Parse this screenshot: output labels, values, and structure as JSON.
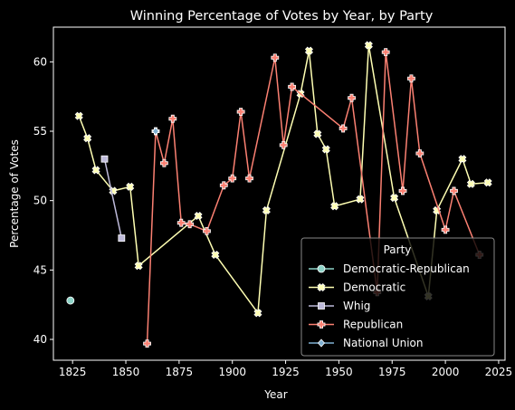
{
  "chart_data": {
    "type": "line",
    "title": "Winning Percentage of Votes by Year, by Party",
    "xlabel": "Year",
    "ylabel": "Percentage of Votes",
    "xlim": [
      1816,
      2028
    ],
    "ylim": [
      38.5,
      62.5
    ],
    "xticks": [
      1825,
      1850,
      1875,
      1900,
      1925,
      1950,
      1975,
      2000,
      2025
    ],
    "yticks": [
      40,
      45,
      50,
      55,
      60
    ],
    "grid": false,
    "legend_title": "Party",
    "legend_position": "lower-right",
    "series": [
      {
        "name": "Democratic-Republican",
        "color": "#8dd3c7",
        "marker": "circle",
        "x": [
          1824
        ],
        "y": [
          42.8
        ]
      },
      {
        "name": "Democratic",
        "color": "#ffffb3",
        "marker": "x-filled",
        "x": [
          1828,
          1832,
          1836,
          1844,
          1852,
          1856,
          1884,
          1892,
          1912,
          1916,
          1932,
          1936,
          1940,
          1944,
          1948,
          1960,
          1964,
          1976,
          1992,
          1996,
          2008,
          2012,
          2020
        ],
        "y": [
          56.1,
          54.5,
          52.2,
          50.7,
          51.0,
          45.3,
          48.9,
          46.1,
          41.9,
          49.3,
          57.7,
          60.8,
          54.8,
          53.7,
          49.6,
          50.1,
          61.2,
          50.2,
          43.1,
          49.3,
          53.0,
          51.2,
          51.3
        ]
      },
      {
        "name": "Whig",
        "color": "#bebada",
        "marker": "square",
        "x": [
          1840,
          1848
        ],
        "y": [
          53.0,
          47.3
        ]
      },
      {
        "name": "Republican",
        "color": "#fb8072",
        "marker": "plus-filled",
        "x": [
          1860,
          1864,
          1868,
          1872,
          1876,
          1880,
          1888,
          1896,
          1900,
          1904,
          1908,
          1920,
          1924,
          1928,
          1952,
          1956,
          1968,
          1972,
          1980,
          1984,
          1988,
          2000,
          2004,
          2016
        ],
        "y": [
          39.7,
          55.0,
          52.7,
          55.9,
          48.4,
          48.3,
          47.8,
          51.1,
          51.6,
          56.4,
          51.6,
          60.3,
          54.0,
          58.2,
          55.2,
          57.4,
          43.4,
          60.7,
          50.7,
          58.8,
          53.4,
          47.9,
          50.7,
          46.1
        ]
      },
      {
        "name": "National Union",
        "color": "#80b1d3",
        "marker": "diamond",
        "x": [
          1864
        ],
        "y": [
          55.0
        ]
      }
    ]
  }
}
